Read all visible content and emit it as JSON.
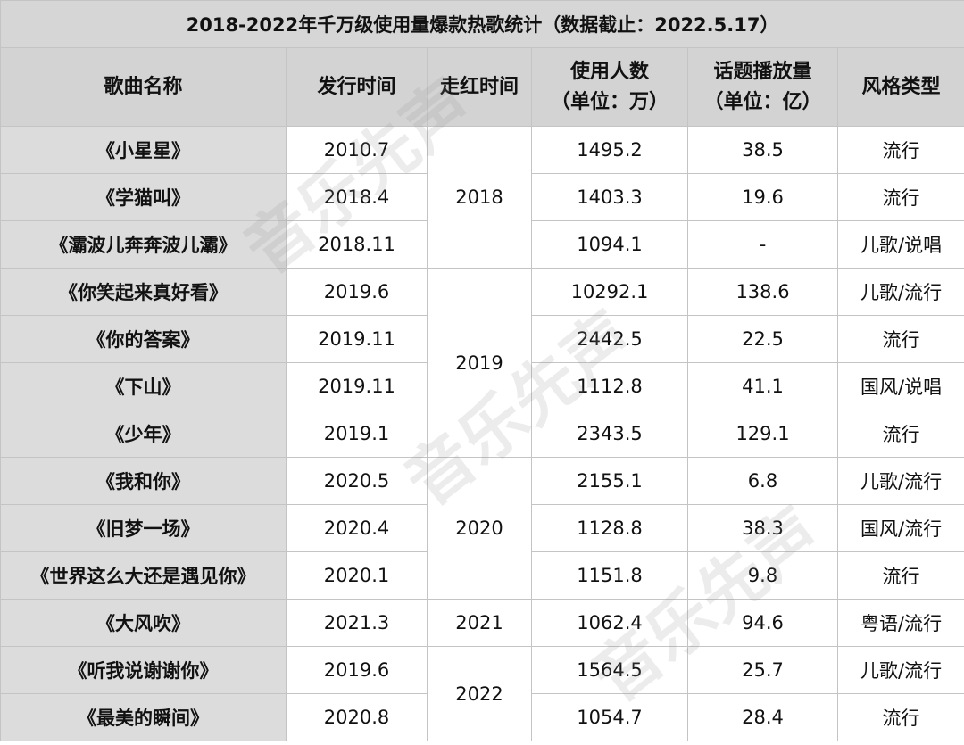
{
  "title": "2018-2022年千万级使用量爆款热歌统计（数据截止：2022.5.17）",
  "headers": {
    "name": "歌曲名称",
    "release": "发行时间",
    "viral": "走红时间",
    "users_line1": "使用人数",
    "users_line2": "（单位：万）",
    "plays_line1": "话题播放量",
    "plays_line2": "（单位：亿）",
    "genre": "风格类型"
  },
  "rows": [
    {
      "name": "《小星星》",
      "release": "2010.7",
      "users": "1495.2",
      "plays": "38.5",
      "genre": "流行"
    },
    {
      "name": "《学猫叫》",
      "release": "2018.4",
      "users": "1403.3",
      "plays": "19.6",
      "genre": "流行"
    },
    {
      "name": "《灞波儿奔奔波儿灞》",
      "release": "2018.11",
      "users": "1094.1",
      "plays": "-",
      "genre": "儿歌/说唱"
    },
    {
      "name": "《你笑起来真好看》",
      "release": "2019.6",
      "users": "10292.1",
      "plays": "138.6",
      "genre": "儿歌/流行"
    },
    {
      "name": "《你的答案》",
      "release": "2019.11",
      "users": "2442.5",
      "plays": "22.5",
      "genre": "流行"
    },
    {
      "name": "《下山》",
      "release": "2019.11",
      "users": "1112.8",
      "plays": "41.1",
      "genre": "国风/说唱"
    },
    {
      "name": "《少年》",
      "release": "2019.1",
      "users": "2343.5",
      "plays": "129.1",
      "genre": "流行"
    },
    {
      "name": "《我和你》",
      "release": "2020.5",
      "users": "2155.1",
      "plays": "6.8",
      "genre": "儿歌/流行"
    },
    {
      "name": "《旧梦一场》",
      "release": "2020.4",
      "users": "1128.8",
      "plays": "38.3",
      "genre": "国风/流行"
    },
    {
      "name": "《世界这么大还是遇见你》",
      "release": "2020.1",
      "users": "1151.8",
      "plays": "9.8",
      "genre": "流行"
    },
    {
      "name": "《大风吹》",
      "release": "2021.3",
      "users": "1062.4",
      "plays": "94.6",
      "genre": "粤语/流行"
    },
    {
      "name": "《听我说谢谢你》",
      "release": "2019.6",
      "users": "1564.5",
      "plays": "25.7",
      "genre": "儿歌/流行"
    },
    {
      "name": "《最美的瞬间》",
      "release": "2020.8",
      "users": "1054.7",
      "plays": "28.4",
      "genre": "流行"
    }
  ],
  "viral_groups": [
    {
      "year": "2018",
      "span": 3
    },
    {
      "year": "2019",
      "span": 4
    },
    {
      "year": "2020",
      "span": 3
    },
    {
      "year": "2021",
      "span": 1
    },
    {
      "year": "2022",
      "span": 2
    }
  ],
  "watermark": "音乐先声"
}
